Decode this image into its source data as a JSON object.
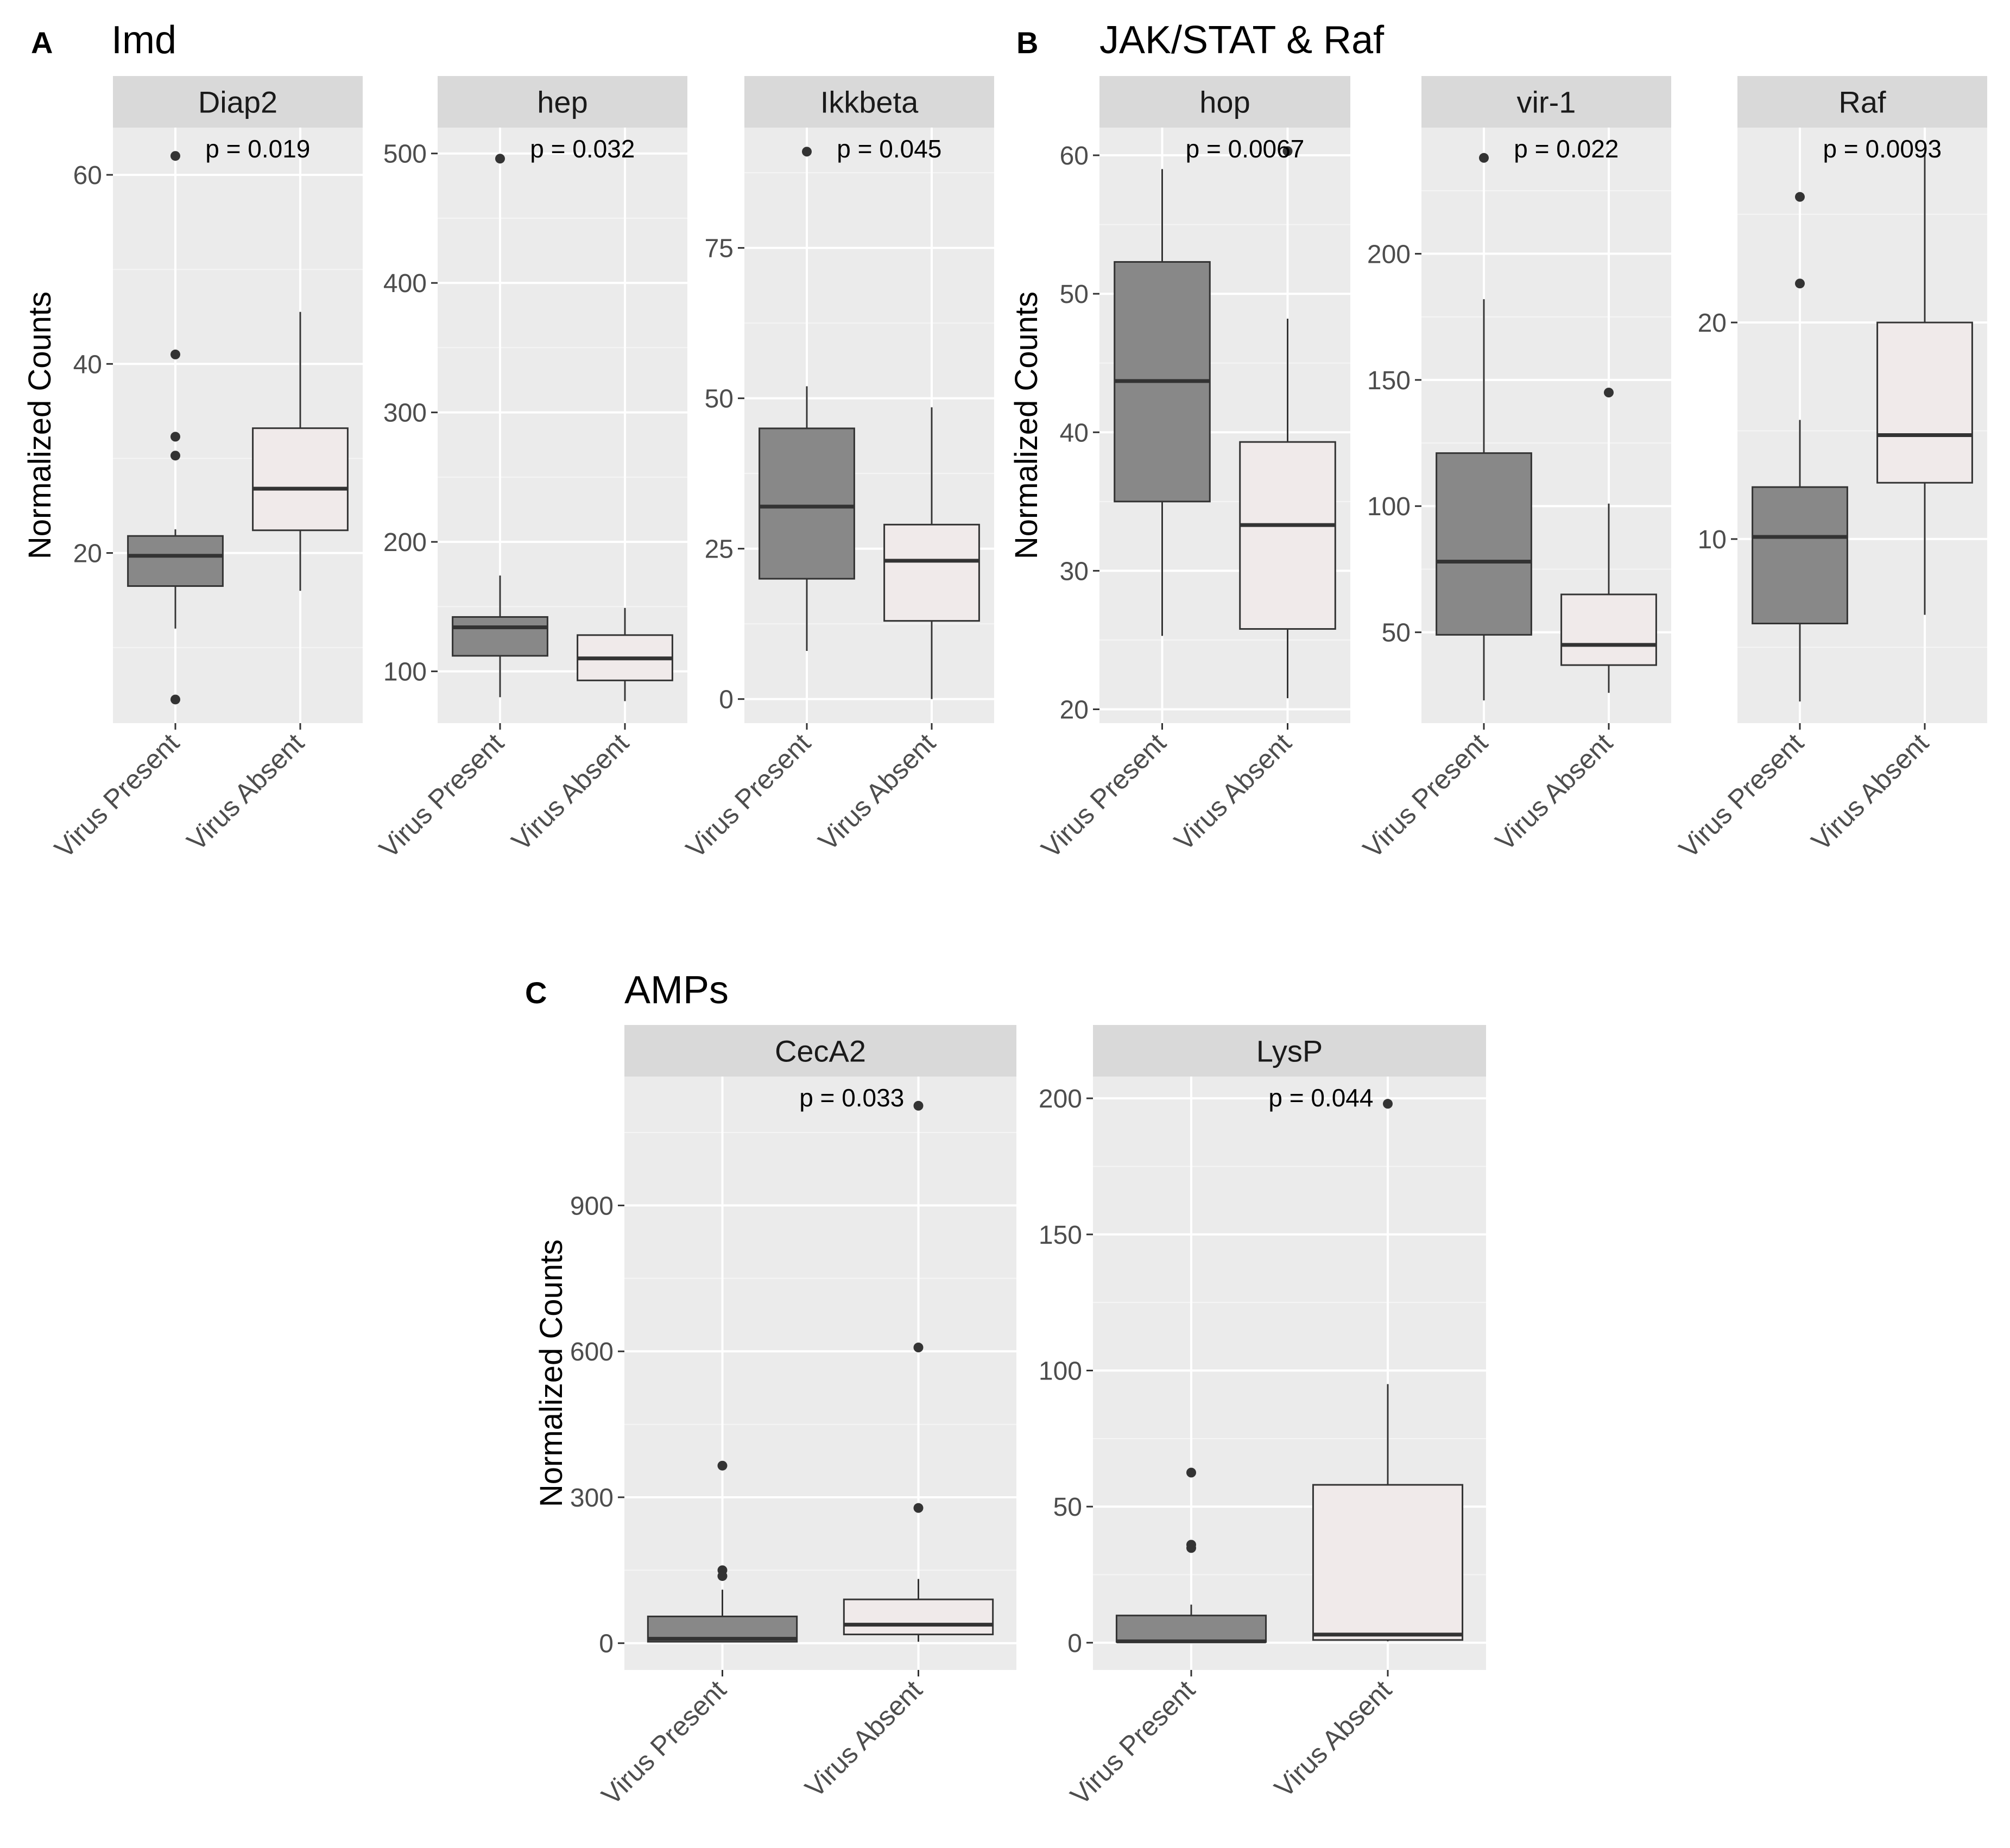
{
  "sections": [
    {
      "letter": "A",
      "title": "Imd"
    },
    {
      "letter": "B",
      "title": "JAK/STAT & Raf"
    },
    {
      "letter": "C",
      "title": "AMPs"
    }
  ],
  "colors": {
    "panel_bg": "#ebebeb",
    "strip_bg": "#d9d9d9",
    "grid_major": "#ffffff",
    "grid_minor": "#f5f5f5",
    "box_present": "#888888",
    "box_absent": "#f0eaea",
    "outline": "#333333",
    "text": "#1a1a1a",
    "tick_text": "#4d4d4d"
  },
  "chart_data": [
    {
      "type": "boxplot",
      "section": "A",
      "title": "Diap2",
      "pvalue": "p = 0.019",
      "ylabel": "Normalized Counts",
      "ylim": [
        2,
        65
      ],
      "ticks": [
        20,
        40,
        60
      ],
      "minor_ticks": [
        10,
        30,
        50
      ],
      "categories": [
        "Virus Present",
        "Virus Absent"
      ],
      "series": [
        {
          "name": "Virus Present",
          "min": 12,
          "q1": 16.5,
          "median": 19.7,
          "q3": 21.8,
          "max": 22.5,
          "outliers": [
            62,
            41,
            32.3,
            30.3,
            4.5
          ]
        },
        {
          "name": "Virus Absent",
          "min": 16,
          "q1": 22.4,
          "median": 26.8,
          "q3": 33.2,
          "max": 45.5,
          "outliers": []
        }
      ]
    },
    {
      "type": "boxplot",
      "section": "A",
      "title": "hep",
      "pvalue": "p = 0.032",
      "ylabel": "",
      "ylim": [
        60,
        520
      ],
      "ticks": [
        100,
        200,
        300,
        400,
        500
      ],
      "minor_ticks": [
        150,
        250,
        350,
        450
      ],
      "categories": [
        "Virus Present",
        "Virus Absent"
      ],
      "series": [
        {
          "name": "Virus Present",
          "min": 80,
          "q1": 112,
          "median": 134,
          "q3": 142,
          "max": 174,
          "outliers": [
            496
          ]
        },
        {
          "name": "Virus Absent",
          "min": 77,
          "q1": 93,
          "median": 110,
          "q3": 128,
          "max": 149,
          "outliers": []
        }
      ]
    },
    {
      "type": "boxplot",
      "section": "A",
      "title": "Ikkbeta",
      "pvalue": "p = 0.045",
      "ylabel": "",
      "ylim": [
        -4,
        95
      ],
      "ticks": [
        0,
        25,
        50,
        75
      ],
      "minor_ticks": [
        12.5,
        37.5,
        62.5,
        87.5
      ],
      "categories": [
        "Virus Present",
        "Virus Absent"
      ],
      "series": [
        {
          "name": "Virus Present",
          "min": 8,
          "q1": 20,
          "median": 32,
          "q3": 45,
          "max": 52,
          "outliers": [
            91
          ]
        },
        {
          "name": "Virus Absent",
          "min": 0,
          "q1": 13,
          "median": 23,
          "q3": 29,
          "max": 48.5,
          "outliers": []
        }
      ]
    },
    {
      "type": "boxplot",
      "section": "B",
      "title": "hop",
      "pvalue": "p = 0.0067",
      "ylabel": "Normalized Counts",
      "ylim": [
        19,
        62
      ],
      "ticks": [
        20,
        30,
        40,
        50,
        60
      ],
      "minor_ticks": [
        25,
        35,
        45,
        55
      ],
      "categories": [
        "Virus Present",
        "Virus Absent"
      ],
      "series": [
        {
          "name": "Virus Present",
          "min": 25.3,
          "q1": 35,
          "median": 43.7,
          "q3": 52.3,
          "max": 59,
          "outliers": []
        },
        {
          "name": "Virus Absent",
          "min": 20.8,
          "q1": 25.8,
          "median": 33.3,
          "q3": 39.3,
          "max": 48.2,
          "outliers": [
            60.3
          ]
        }
      ]
    },
    {
      "type": "boxplot",
      "section": "B",
      "title": "vir-1",
      "pvalue": "p = 0.022",
      "ylabel": "",
      "ylim": [
        14,
        250
      ],
      "ticks": [
        50,
        100,
        150,
        200
      ],
      "minor_ticks": [
        75,
        125,
        175,
        225
      ],
      "categories": [
        "Virus Present",
        "Virus Absent"
      ],
      "series": [
        {
          "name": "Virus Present",
          "min": 23,
          "q1": 49,
          "median": 78,
          "q3": 121,
          "max": 182,
          "outliers": [
            238
          ]
        },
        {
          "name": "Virus Absent",
          "min": 26,
          "q1": 37,
          "median": 45,
          "q3": 65,
          "max": 101,
          "outliers": [
            145
          ]
        }
      ]
    },
    {
      "type": "boxplot",
      "section": "B",
      "title": "Raf",
      "pvalue": "p = 0.0093",
      "ylabel": "",
      "ylim": [
        1.5,
        29
      ],
      "ticks": [
        10,
        20
      ],
      "minor_ticks": [
        5,
        15,
        25
      ],
      "categories": [
        "Virus Present",
        "Virus Absent"
      ],
      "series": [
        {
          "name": "Virus Present",
          "min": 2.5,
          "q1": 6.1,
          "median": 10.1,
          "q3": 12.4,
          "max": 15.5,
          "outliers": [
            25.8,
            21.8
          ]
        },
        {
          "name": "Virus Absent",
          "min": 6.5,
          "q1": 12.6,
          "median": 14.8,
          "q3": 20,
          "max": 27.8,
          "outliers": []
        }
      ]
    },
    {
      "type": "boxplot",
      "section": "C",
      "title": "CecA2",
      "pvalue": "p = 0.033",
      "ylabel": "Normalized Counts",
      "ylim": [
        -55,
        1165
      ],
      "ticks": [
        0,
        300,
        600,
        900
      ],
      "minor_ticks": [
        150,
        450,
        750,
        1050
      ],
      "categories": [
        "Virus Present",
        "Virus Absent"
      ],
      "series": [
        {
          "name": "Virus Present",
          "min": 2,
          "q1": 3,
          "median": 9,
          "q3": 55,
          "max": 110,
          "outliers": [
            365,
            150,
            138
          ]
        },
        {
          "name": "Virus Absent",
          "min": 3,
          "q1": 18,
          "median": 38,
          "q3": 90,
          "max": 132,
          "outliers": [
            1105,
            608,
            278
          ]
        }
      ]
    },
    {
      "type": "boxplot",
      "section": "C",
      "title": "LysP",
      "pvalue": "p = 0.044",
      "ylabel": "",
      "ylim": [
        -10,
        208
      ],
      "ticks": [
        0,
        50,
        100,
        150,
        200
      ],
      "minor_ticks": [
        25,
        75,
        125,
        175
      ],
      "categories": [
        "Virus Present",
        "Virus Absent"
      ],
      "series": [
        {
          "name": "Virus Present",
          "min": 0,
          "q1": 0.3,
          "median": 0.5,
          "q3": 10,
          "max": 14,
          "outliers": [
            62.5,
            36,
            34.8
          ]
        },
        {
          "name": "Virus Absent",
          "min": 0.5,
          "q1": 1,
          "median": 3,
          "q3": 58,
          "max": 95,
          "outliers": [
            198
          ]
        }
      ]
    }
  ]
}
